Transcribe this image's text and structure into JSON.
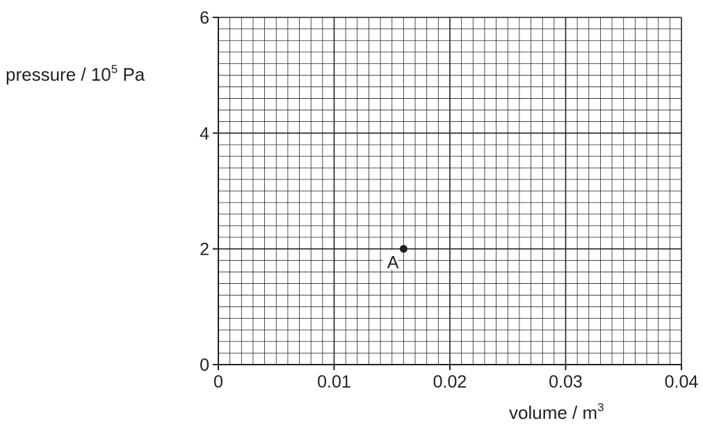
{
  "chart_data": {
    "type": "scatter",
    "x_range": [
      0,
      0.04
    ],
    "y_range": [
      0,
      6
    ],
    "x_ticks": [
      "0",
      "0.01",
      "0.02",
      "0.03",
      "0.04"
    ],
    "y_ticks": [
      "0",
      "2",
      "4",
      "6"
    ],
    "grid": true,
    "xlabel": {
      "base": "volume",
      "sep": " / ",
      "unit": "m",
      "exp": "3"
    },
    "ylabel": {
      "base": "pressure",
      "sep": " / ",
      "unit_pre": "10",
      "exp": "5",
      "unit_post": " Pa"
    },
    "points": [
      {
        "label": "A",
        "x": 0.016,
        "y": 2.0
      }
    ]
  }
}
